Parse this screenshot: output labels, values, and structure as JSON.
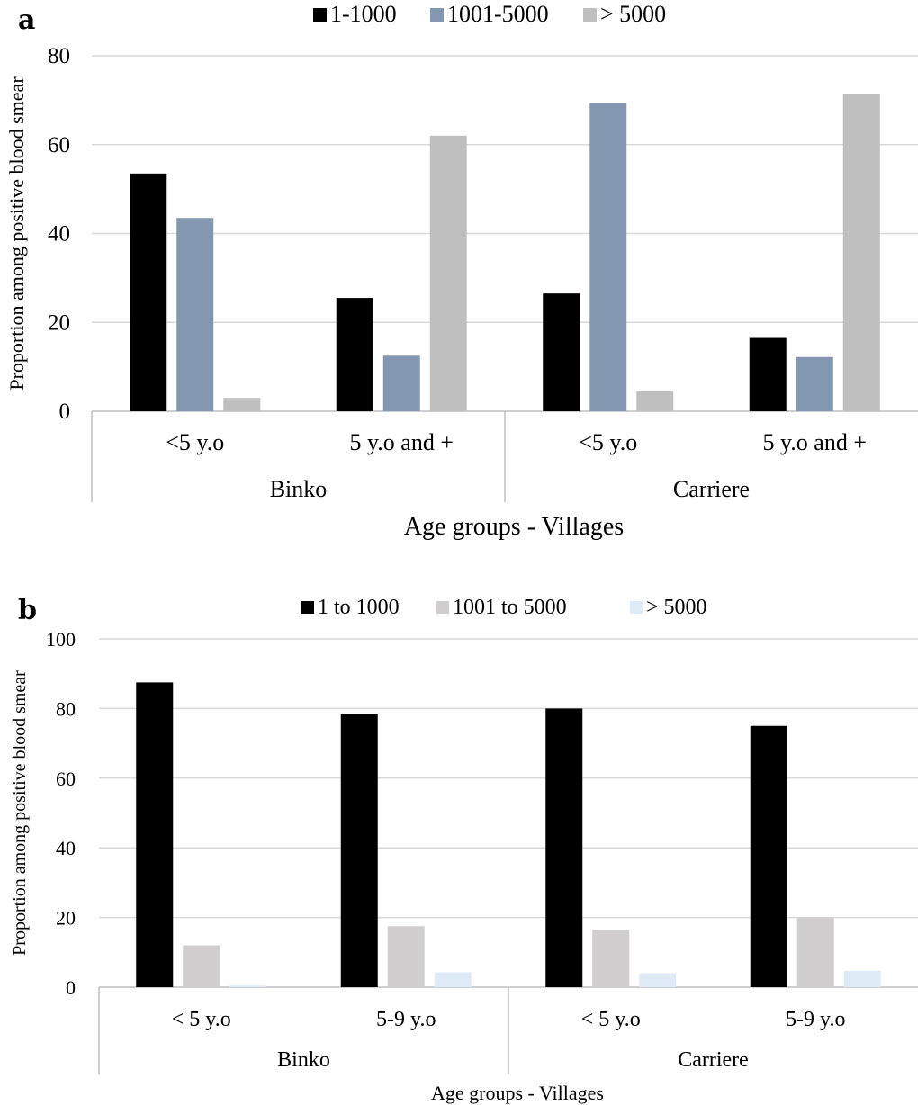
{
  "chart_data": [
    {
      "panel": "a",
      "type": "bar",
      "ylabel": "Proportion among positive blood smear",
      "xlabel": "Age groups - Villages",
      "ylim": [
        0,
        80
      ],
      "yticks": [
        0,
        20,
        40,
        60,
        80
      ],
      "grid": true,
      "legend_position": "top",
      "categories": [
        "<5 y.o",
        "5 y.o and +",
        "<5 y.o",
        "5 y.o and +"
      ],
      "groups": [
        {
          "label": "Binko",
          "span": 2
        },
        {
          "label": "Carriere",
          "span": 2
        }
      ],
      "series": [
        {
          "name": "1-1000",
          "color": "#000000",
          "values": [
            53.5,
            25.5,
            26.5,
            16.5
          ]
        },
        {
          "name": "1001-5000",
          "color": "#8497b0",
          "values": [
            43.5,
            12.5,
            69.3,
            12.2
          ]
        },
        {
          "name": "> 5000",
          "color": "#bfbfbf",
          "values": [
            3.0,
            62.0,
            4.5,
            71.5
          ]
        }
      ]
    },
    {
      "panel": "b",
      "type": "bar",
      "ylabel": "Proportion among positive blood smear",
      "xlabel": "Age groups - Villages",
      "ylim": [
        0,
        100
      ],
      "yticks": [
        0,
        20,
        40,
        60,
        80,
        100
      ],
      "grid": true,
      "legend_position": "top",
      "categories": [
        "< 5 y.o",
        "5-9 y.o",
        "< 5 y.o",
        "5-9 y.o"
      ],
      "groups": [
        {
          "label": "Binko",
          "span": 2
        },
        {
          "label": "Carriere",
          "span": 2
        }
      ],
      "series": [
        {
          "name": "1 to 1000",
          "color": "#000000",
          "values": [
            87.5,
            78.5,
            80.0,
            75.0
          ]
        },
        {
          "name": "1001 to 5000",
          "color": "#d0cece",
          "values": [
            12.0,
            17.5,
            16.5,
            20.0
          ]
        },
        {
          "name": "> 5000",
          "color": "#deebf7",
          "values": [
            0.5,
            4.3,
            4.0,
            4.7
          ]
        }
      ]
    }
  ]
}
